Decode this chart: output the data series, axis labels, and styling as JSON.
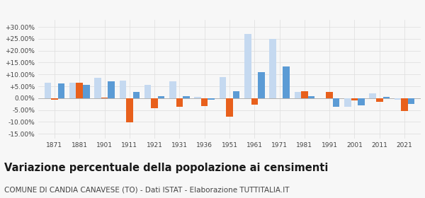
{
  "years": [
    1871,
    1881,
    1901,
    1911,
    1921,
    1931,
    1936,
    1951,
    1961,
    1971,
    1981,
    1991,
    2001,
    2011,
    2021
  ],
  "candia": [
    -0.5,
    6.5,
    0.2,
    -10.2,
    -4.3,
    -3.5,
    -3.2,
    -7.8,
    -2.8,
    0.0,
    3.0,
    2.5,
    -1.0,
    -1.5,
    -5.5
  ],
  "provincia": [
    6.5,
    6.5,
    8.5,
    7.5,
    5.5,
    7.0,
    0.5,
    9.0,
    27.0,
    25.0,
    2.5,
    0.0,
    -3.5,
    2.0,
    -0.5
  ],
  "piemonte": [
    6.2,
    5.5,
    7.0,
    2.5,
    0.8,
    0.8,
    -0.5,
    3.0,
    11.0,
    13.5,
    1.0,
    -3.5,
    -3.0,
    0.5,
    -2.5
  ],
  "candia_color": "#e8601c",
  "provincia_color": "#c5d9f0",
  "piemonte_color": "#5b9bd5",
  "title": "Variazione percentuale della popolazione ai censimenti",
  "subtitle": "COMUNE DI CANDIA CANAVESE (TO) - Dati ISTAT - Elaborazione TUTTITALIA.IT",
  "ylim": [
    -17,
    33
  ],
  "yticks": [
    -15,
    -10,
    -5,
    0,
    5,
    10,
    15,
    20,
    25,
    30
  ],
  "ytick_labels": [
    "-15.00%",
    "-10.00%",
    "-5.00%",
    "0.00%",
    "+5.00%",
    "+10.00%",
    "+15.00%",
    "+20.00%",
    "+25.00%",
    "+30.00%"
  ],
  "bar_width": 0.27,
  "bg_color": "#f7f7f7",
  "grid_color": "#dddddd",
  "title_fontsize": 10.5,
  "subtitle_fontsize": 7.5
}
